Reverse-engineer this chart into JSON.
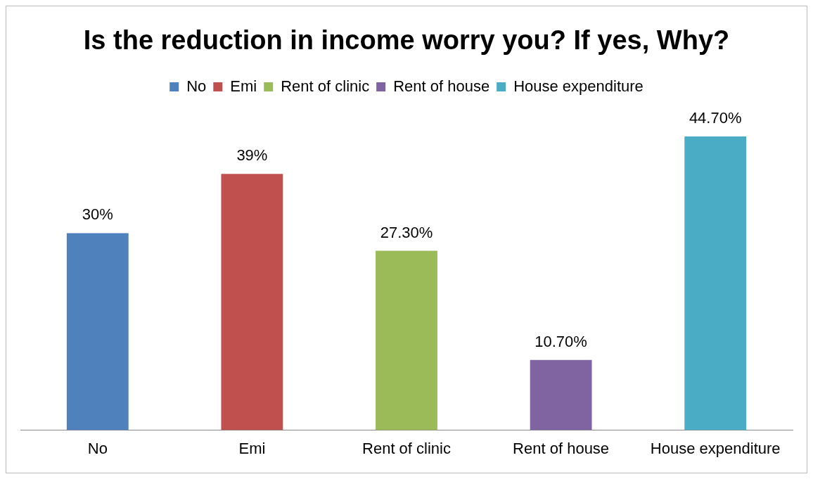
{
  "chart_data": {
    "type": "bar",
    "title": "Is the reduction in income worry you? If yes, Why?",
    "categories": [
      "No",
      "Emi",
      "Rent of clinic",
      "Rent of house",
      "House expenditure"
    ],
    "series": [
      {
        "name": "No",
        "color": "#4f81bd",
        "values": [
          30,
          null,
          null,
          null,
          null
        ],
        "value_labels": [
          "30%",
          null,
          null,
          null,
          null
        ]
      },
      {
        "name": "Emi",
        "color": "#c0504d",
        "values": [
          null,
          39,
          null,
          null,
          null
        ],
        "value_labels": [
          null,
          "39%",
          null,
          null,
          null
        ]
      },
      {
        "name": "Rent of clinic",
        "color": "#9bbb59",
        "values": [
          null,
          null,
          27.3,
          null,
          null
        ],
        "value_labels": [
          null,
          null,
          "27.30%",
          null,
          null
        ]
      },
      {
        "name": "Rent of house",
        "color": "#8064a2",
        "values": [
          null,
          null,
          null,
          10.7,
          null
        ],
        "value_labels": [
          null,
          null,
          null,
          "10.70%",
          null
        ]
      },
      {
        "name": "House expenditure",
        "color": "#4bacc6",
        "values": [
          null,
          null,
          null,
          null,
          44.7
        ],
        "value_labels": [
          null,
          null,
          null,
          null,
          "44.70%"
        ]
      }
    ],
    "legend": "top",
    "grid": false
  }
}
